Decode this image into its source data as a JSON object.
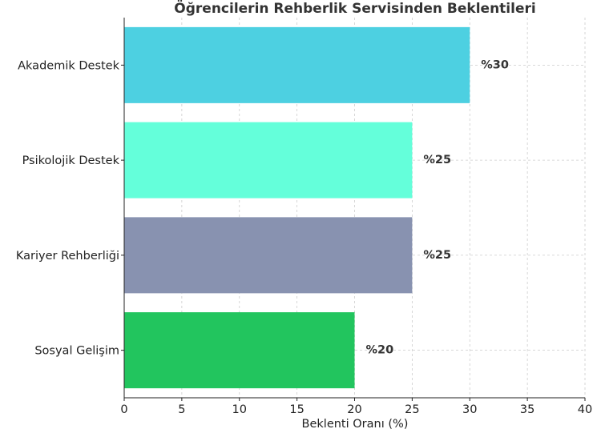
{
  "chart_data": {
    "type": "bar",
    "orientation": "horizontal",
    "title": "Öğrencilerin Rehberlik Servisinden Beklentileri",
    "xlabel": "Beklenti Oranı (%)",
    "ylabel": "",
    "xlim": [
      0,
      40
    ],
    "xticks": [
      0,
      5,
      10,
      15,
      20,
      25,
      30,
      35,
      40
    ],
    "grid": true,
    "categories": [
      "Akademik Destek",
      "Psikolojik Destek",
      "Kariyer Rehberliği",
      "Sosyal Gelişim"
    ],
    "values": [
      30,
      25,
      25,
      20
    ],
    "value_labels": [
      "%30",
      "%25",
      "%25",
      "%20"
    ],
    "colors": [
      "#4dd0e1",
      "#64ffda",
      "#8892b0",
      "#22c55e"
    ]
  }
}
